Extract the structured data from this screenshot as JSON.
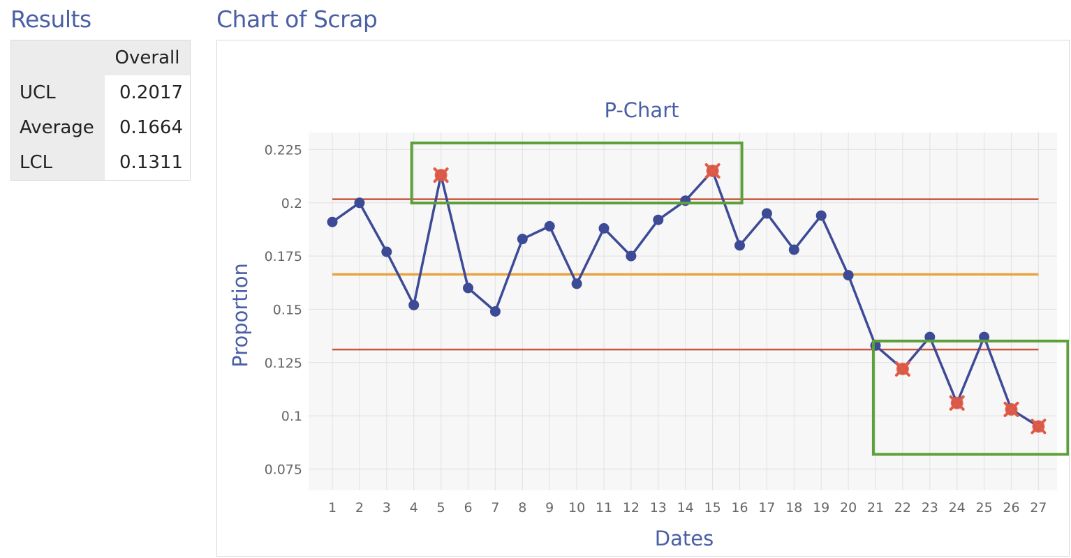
{
  "results": {
    "title": "Results",
    "column_header": "Overall",
    "rows": [
      {
        "label": "UCL",
        "value": "0.2017"
      },
      {
        "label": "Average",
        "value": "0.1664"
      },
      {
        "label": "LCL",
        "value": "0.1311"
      }
    ]
  },
  "chart_panel": {
    "title": "Chart of Scrap"
  },
  "chart_data": {
    "type": "line",
    "title": "P-Chart",
    "xlabel": "Dates",
    "ylabel": "Proportion",
    "categories": [
      "1",
      "2",
      "3",
      "4",
      "5",
      "6",
      "7",
      "8",
      "9",
      "10",
      "11",
      "12",
      "13",
      "14",
      "15",
      "16",
      "17",
      "18",
      "19",
      "20",
      "21",
      "22",
      "23",
      "24",
      "25",
      "26",
      "27"
    ],
    "series": [
      {
        "values": [
          0.191,
          0.2,
          0.177,
          0.152,
          0.213,
          0.16,
          0.149,
          0.183,
          0.189,
          0.162,
          0.188,
          0.175,
          0.192,
          0.201,
          0.215,
          0.18,
          0.195,
          0.178,
          0.194,
          0.166,
          0.133,
          0.122,
          0.137,
          0.106,
          0.137,
          0.103,
          0.095
        ],
        "color": "#3d4a96"
      }
    ],
    "out_of_control_points": [
      "5",
      "15",
      "22",
      "24",
      "26",
      "27"
    ],
    "control_limits": {
      "ucl": 0.2017,
      "center": 0.1664,
      "lcl": 0.1311
    },
    "ylim": [
      0.065,
      0.233
    ],
    "yticks": [
      0.075,
      0.1,
      0.125,
      0.15,
      0.175,
      0.2,
      0.225
    ],
    "ytick_labels": [
      "0.075",
      "0.1",
      "0.125",
      "0.15",
      "0.175",
      "0.2",
      "0.225"
    ],
    "grid": true,
    "colors": {
      "line": "#3d4a96",
      "limit": "#c8553d",
      "center": "#e8a33d",
      "out_marker": "#e05a45",
      "highlight_box": "#5da03a",
      "grid": "#ececec",
      "title": "#4a5fa5"
    },
    "highlight_groups": [
      {
        "from": "5",
        "to": "15"
      },
      {
        "from": "22",
        "to": "27"
      }
    ]
  }
}
